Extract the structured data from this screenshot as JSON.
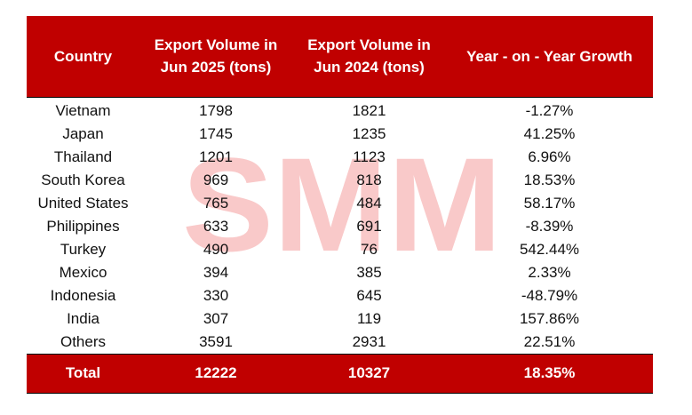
{
  "table": {
    "headers": [
      "Country",
      "Export Volume in Jun 2025 (tons)",
      "Export Volume in Jun 2024 (tons)",
      "Year - on - Year Growth"
    ],
    "rows": [
      {
        "country": "Vietnam",
        "jun2025": "1798",
        "jun2024": "1821",
        "yoy": "-1.27%"
      },
      {
        "country": "Japan",
        "jun2025": "1745",
        "jun2024": "1235",
        "yoy": "41.25%"
      },
      {
        "country": "Thailand",
        "jun2025": "1201",
        "jun2024": "1123",
        "yoy": "6.96%"
      },
      {
        "country": "South Korea",
        "jun2025": "969",
        "jun2024": "818",
        "yoy": "18.53%"
      },
      {
        "country": "United States",
        "jun2025": "765",
        "jun2024": "484",
        "yoy": "58.17%"
      },
      {
        "country": "Philippines",
        "jun2025": "633",
        "jun2024": "691",
        "yoy": "-8.39%"
      },
      {
        "country": "Turkey",
        "jun2025": "490",
        "jun2024": "76",
        "yoy": "542.44%"
      },
      {
        "country": "Mexico",
        "jun2025": "394",
        "jun2024": "385",
        "yoy": "2.33%"
      },
      {
        "country": "Indonesia",
        "jun2025": "330",
        "jun2024": "645",
        "yoy": "-48.79%"
      },
      {
        "country": "India",
        "jun2025": "307",
        "jun2024": "119",
        "yoy": "157.86%"
      },
      {
        "country": "Others",
        "jun2025": "3591",
        "jun2024": "2931",
        "yoy": "22.51%"
      }
    ],
    "total": {
      "label": "Total",
      "jun2025": "12222",
      "jun2024": "10327",
      "yoy": "18.35%"
    }
  },
  "watermark": {
    "text": "SMM",
    "color": "#f9c9c9"
  },
  "colors": {
    "header_bg": "#c00000",
    "header_text": "#ffffff",
    "body_text": "#111111"
  }
}
